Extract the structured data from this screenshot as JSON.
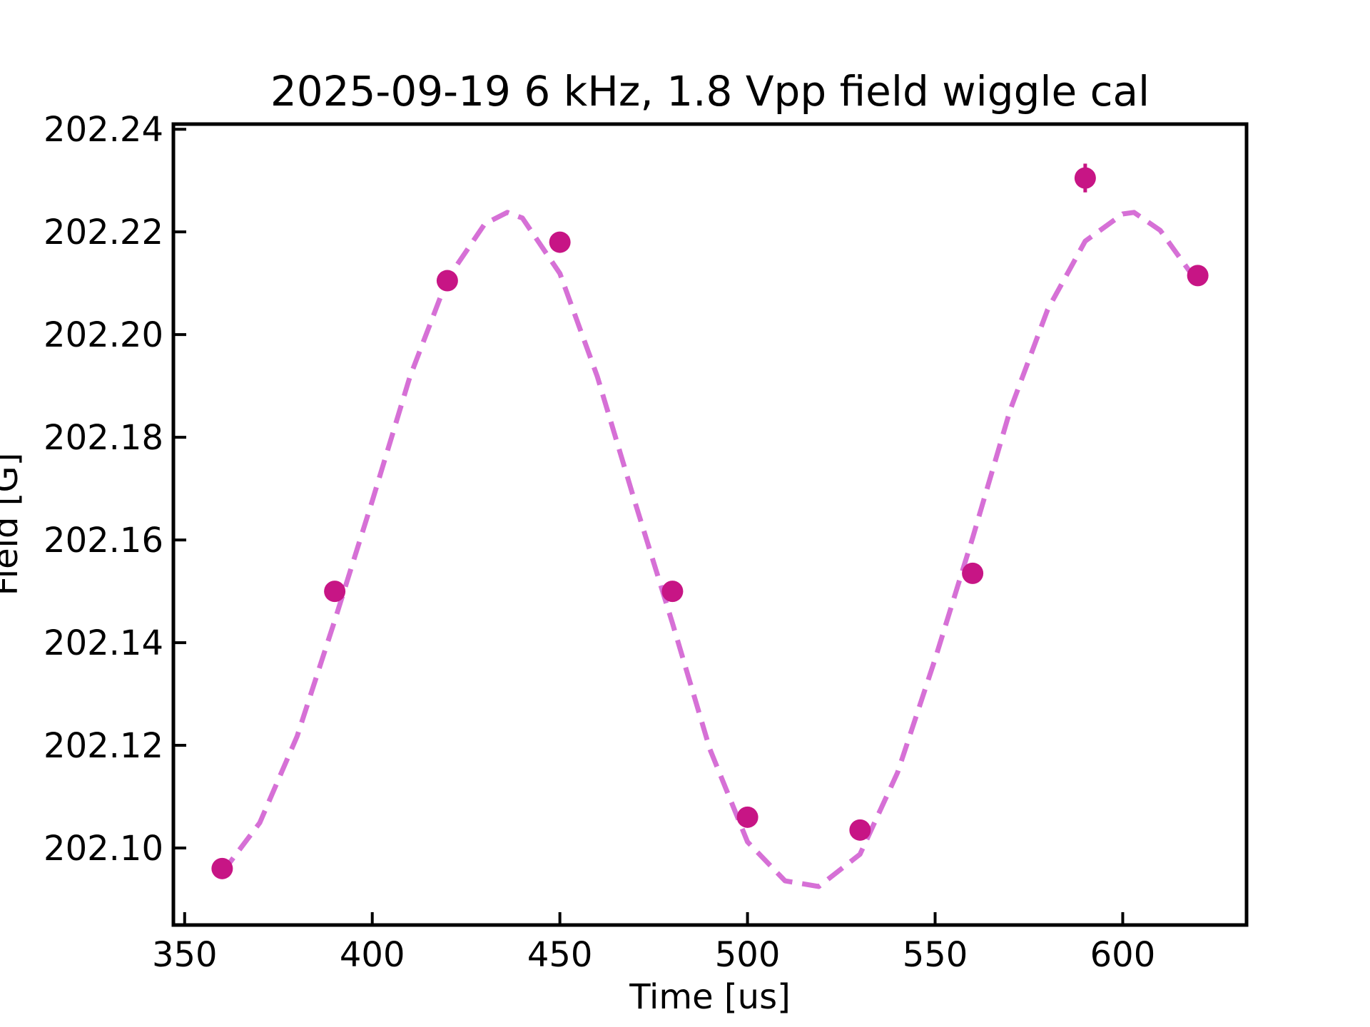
{
  "chart_data": {
    "type": "scatter",
    "title": "2025-09-19 6 kHz, 1.8 Vpp field wiggle cal",
    "xlabel": "Time [us]",
    "ylabel": "Field [G]",
    "xlim": [
      347,
      633
    ],
    "ylim": [
      202.085,
      202.241
    ],
    "xticks": [
      350,
      400,
      450,
      500,
      550,
      600
    ],
    "yticks": [
      202.1,
      202.12,
      202.14,
      202.16,
      202.18,
      202.2,
      202.22,
      202.24
    ],
    "grid": false,
    "colors": {
      "points": "#c71585",
      "fit": "#d670d6",
      "frame": "#000000"
    },
    "series": [
      {
        "kind": "points",
        "x": [
          360,
          390,
          420,
          450,
          480,
          500,
          530,
          560,
          590,
          620
        ],
        "y": [
          202.096,
          202.15,
          202.2105,
          202.218,
          202.15,
          202.106,
          202.1035,
          202.1535,
          202.2305,
          202.2115
        ],
        "yerr": [
          0.0008,
          0.0008,
          0.0008,
          0.0008,
          0.0008,
          0.0008,
          0.0008,
          0.0008,
          0.0028,
          0.0008
        ]
      },
      {
        "kind": "fit-line",
        "style": "dashed",
        "x": [
          360,
          370,
          380,
          390,
          400,
          410,
          420,
          430,
          436,
          440,
          450,
          460,
          470,
          480,
          490,
          500,
          510,
          519,
          530,
          540,
          550,
          560,
          570,
          580,
          590,
          600,
          603,
          610,
          620
        ],
        "y": [
          202.0952,
          202.1049,
          202.1218,
          202.1443,
          202.1676,
          202.1917,
          202.2108,
          202.2216,
          202.2238,
          202.2227,
          202.2119,
          202.1918,
          202.1674,
          202.1438,
          202.1192,
          202.1012,
          202.0936,
          202.0925,
          202.0988,
          202.1147,
          202.1368,
          202.1604,
          202.1853,
          202.2049,
          202.2182,
          202.2235,
          202.2238,
          202.2203,
          202.2101
        ]
      }
    ]
  }
}
